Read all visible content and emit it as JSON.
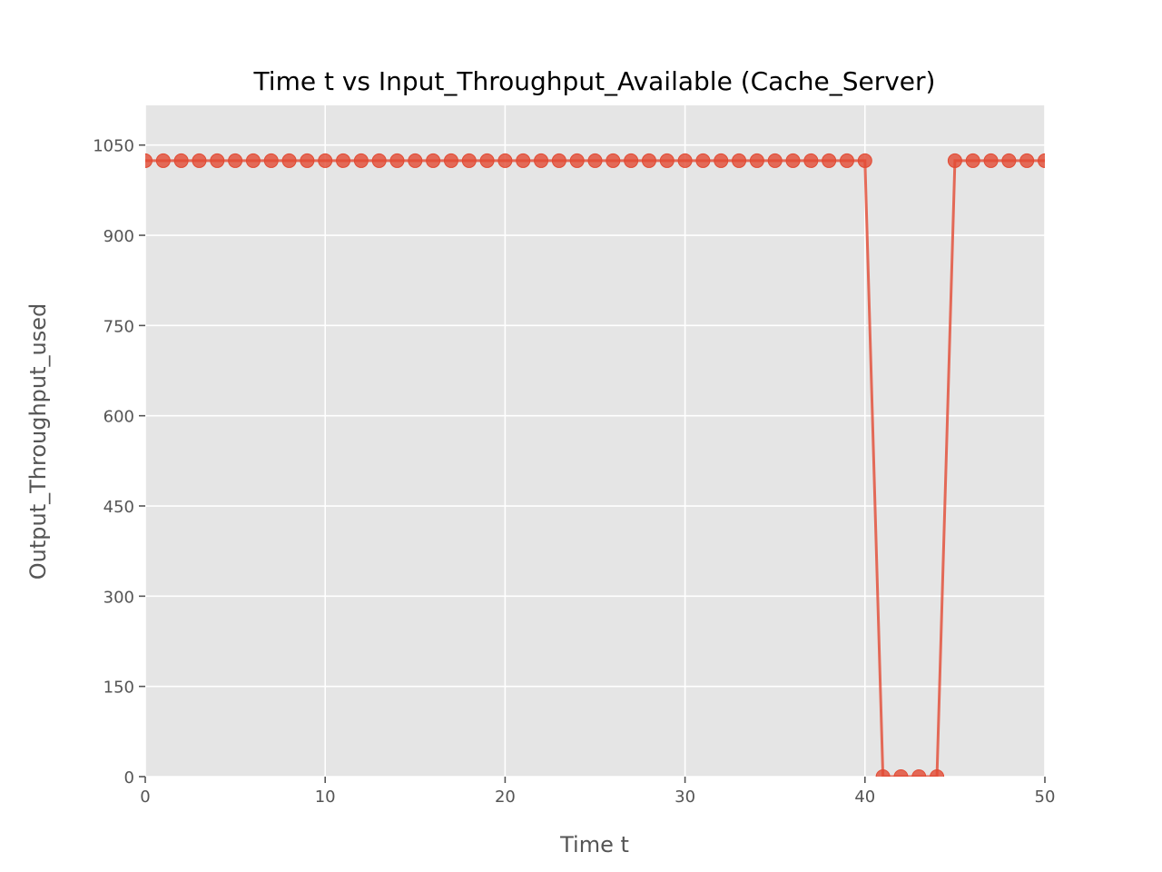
{
  "chart_data": {
    "type": "line",
    "title": "Time t vs Input_Throughput_Available (Cache_Server)",
    "xlabel": "Time t",
    "ylabel": "Output_Throughput_used",
    "xlim": [
      0,
      50
    ],
    "ylim": [
      0,
      1116
    ],
    "xticks": [
      0,
      10,
      20,
      30,
      40,
      50
    ],
    "yticks": [
      0,
      150,
      300,
      450,
      600,
      750,
      900,
      1050
    ],
    "grid": true,
    "background": "#e5e5e5",
    "series": [
      {
        "color": "#e24a33",
        "x": [
          0,
          1,
          2,
          3,
          4,
          5,
          6,
          7,
          8,
          9,
          10,
          11,
          12,
          13,
          14,
          15,
          16,
          17,
          18,
          19,
          20,
          21,
          22,
          23,
          24,
          25,
          26,
          27,
          28,
          29,
          30,
          31,
          32,
          33,
          34,
          35,
          36,
          37,
          38,
          39,
          40,
          41,
          42,
          43,
          44,
          45,
          46,
          47,
          48,
          49,
          50
        ],
        "y": [
          1024,
          1024,
          1024,
          1024,
          1024,
          1024,
          1024,
          1024,
          1024,
          1024,
          1024,
          1024,
          1024,
          1024,
          1024,
          1024,
          1024,
          1024,
          1024,
          1024,
          1024,
          1024,
          1024,
          1024,
          1024,
          1024,
          1024,
          1024,
          1024,
          1024,
          1024,
          1024,
          1024,
          1024,
          1024,
          1024,
          1024,
          1024,
          1024,
          1024,
          1024,
          0,
          0,
          0,
          0,
          1024,
          1024,
          1024,
          1024,
          1024,
          1024
        ]
      }
    ]
  }
}
